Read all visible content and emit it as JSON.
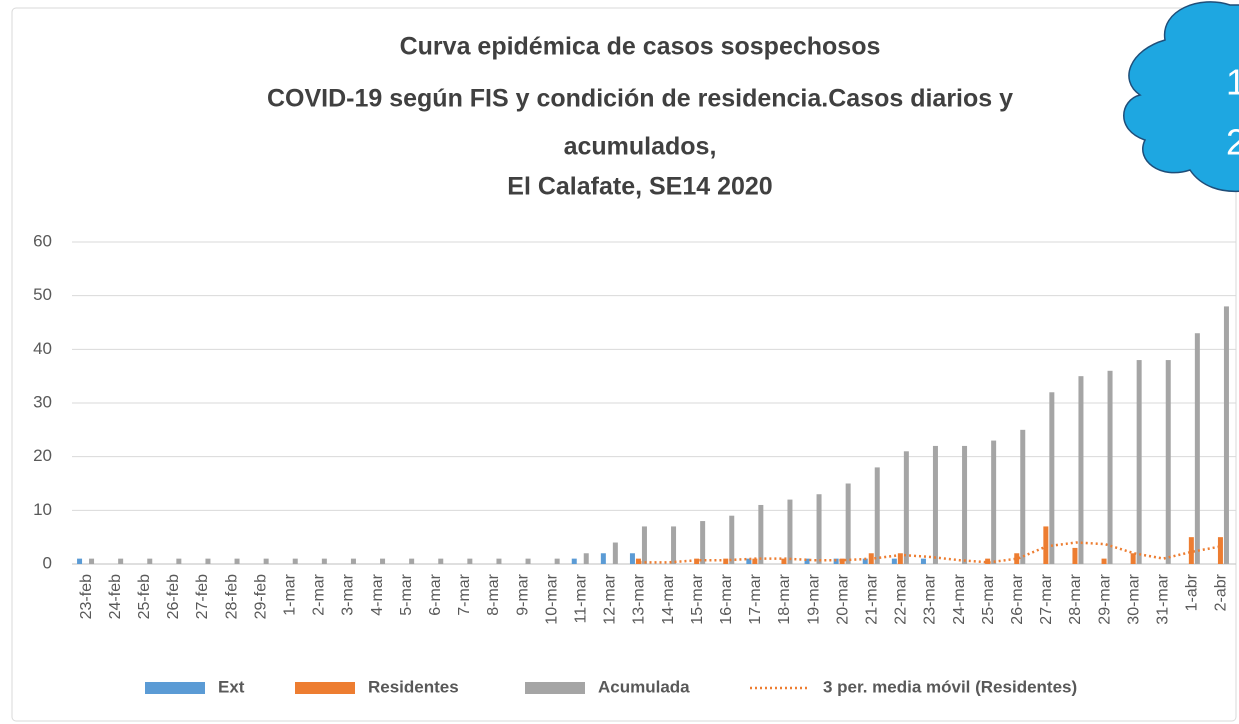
{
  "chart_data": {
    "type": "bar",
    "title": [
      "Curva epidémica de casos sospechosos",
      "COVID-19 según FIS y condición de residencia.Casos diarios y",
      "acumulados,",
      "El Calafate, SE14 2020"
    ],
    "annotations": [
      "1",
      "2"
    ],
    "categories": [
      "23-feb",
      "24-feb",
      "25-feb",
      "26-feb",
      "27-feb",
      "28-feb",
      "29-feb",
      "1-mar",
      "2-mar",
      "3-mar",
      "4-mar",
      "5-mar",
      "6-mar",
      "7-mar",
      "8-mar",
      "9-mar",
      "10-mar",
      "11-mar",
      "12-mar",
      "13-mar",
      "14-mar",
      "15-mar",
      "16-mar",
      "17-mar",
      "18-mar",
      "19-mar",
      "20-mar",
      "21-mar",
      "22-mar",
      "23-mar",
      "24-mar",
      "25-mar",
      "26-mar",
      "27-mar",
      "28-mar",
      "29-mar",
      "30-mar",
      "31-mar",
      "1-abr",
      "2-abr"
    ],
    "series": [
      {
        "name": "Ext",
        "type": "bar",
        "color": "#5b9bd5",
        "values": [
          1,
          0,
          0,
          0,
          0,
          0,
          0,
          0,
          0,
          0,
          0,
          0,
          0,
          0,
          0,
          0,
          0,
          1,
          2,
          2,
          0,
          0,
          0,
          1,
          0,
          1,
          1,
          1,
          1,
          1,
          0,
          0,
          0,
          0,
          0,
          0,
          0,
          0,
          0,
          0
        ]
      },
      {
        "name": "Residentes",
        "type": "bar",
        "color": "#ed7d31",
        "values": [
          0,
          0,
          0,
          0,
          0,
          0,
          0,
          0,
          0,
          0,
          0,
          0,
          0,
          0,
          0,
          0,
          0,
          0,
          0,
          1,
          0,
          1,
          1,
          1,
          1,
          0,
          1,
          2,
          2,
          0,
          0,
          1,
          2,
          7,
          3,
          1,
          2,
          0,
          5,
          5
        ]
      },
      {
        "name": "Acumulada",
        "type": "bar",
        "color": "#a5a5a5",
        "values": [
          1,
          1,
          1,
          1,
          1,
          1,
          1,
          1,
          1,
          1,
          1,
          1,
          1,
          1,
          1,
          1,
          1,
          2,
          4,
          7,
          7,
          8,
          9,
          11,
          12,
          13,
          15,
          18,
          21,
          22,
          22,
          23,
          25,
          32,
          35,
          36,
          38,
          38,
          43,
          48
        ]
      },
      {
        "name": "3 per. media móvil (Residentes)",
        "type": "line",
        "color": "#ed7d31",
        "values": [
          null,
          null,
          null,
          null,
          null,
          null,
          null,
          null,
          null,
          null,
          null,
          null,
          null,
          null,
          null,
          null,
          null,
          null,
          null,
          0.3,
          0.3,
          0.7,
          0.7,
          1,
          1,
          0.7,
          0.7,
          1,
          1.7,
          1.3,
          0.7,
          0.3,
          1,
          3.3,
          4,
          3.7,
          2,
          1,
          2.3,
          3.3
        ]
      }
    ],
    "ylim": [
      0,
      60
    ],
    "yticks": [
      0,
      10,
      20,
      30,
      40,
      50,
      60
    ],
    "grid": true,
    "legend": "bottom"
  }
}
